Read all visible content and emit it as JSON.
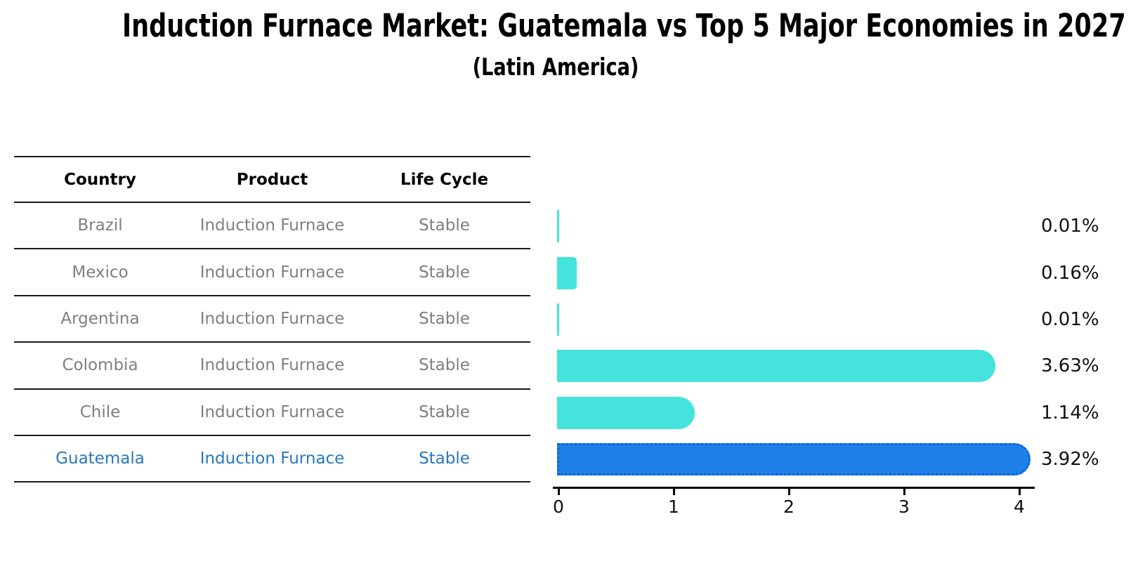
{
  "title": "Induction Furnace Market: Guatemala vs Top 5 Major Economies in 2027",
  "subtitle": "(Latin America)",
  "table": {
    "headers": [
      "Country",
      "Product",
      "Life Cycle"
    ],
    "rows": [
      {
        "country": "Brazil",
        "product": "Induction Furnace",
        "life_cycle": "Stable",
        "highlight": false
      },
      {
        "country": "Mexico",
        "product": "Induction Furnace",
        "life_cycle": "Stable",
        "highlight": false
      },
      {
        "country": "Argentina",
        "product": "Induction Furnace",
        "life_cycle": "Stable",
        "highlight": false
      },
      {
        "country": "Colombia",
        "product": "Induction Furnace",
        "life_cycle": "Stable",
        "highlight": false
      },
      {
        "country": "Chile",
        "product": "Induction Furnace",
        "life_cycle": "Stable",
        "highlight": false
      },
      {
        "country": "Guatemala",
        "product": "Induction Furnace",
        "life_cycle": "Stable",
        "highlight": true
      }
    ]
  },
  "chart_data": {
    "type": "bar",
    "orientation": "horizontal",
    "title": "Induction Furnace Market: Guatemala vs Top 5 Major Economies in 2027",
    "subtitle": "(Latin America)",
    "categories": [
      "Brazil",
      "Mexico",
      "Argentina",
      "Colombia",
      "Chile",
      "Guatemala"
    ],
    "values": [
      0.01,
      0.16,
      0.01,
      3.63,
      1.14,
      3.92
    ],
    "value_labels": [
      "0.01%",
      "0.16%",
      "0.01%",
      "3.63%",
      "1.14%",
      "3.92%"
    ],
    "unit": "%",
    "x_ticks": [
      "0",
      "1",
      "2",
      "3",
      "4"
    ],
    "xlim": [
      0,
      4.2
    ],
    "grid": false,
    "legend": "none",
    "highlight_category": "Guatemala",
    "bar_color": "#44E3DC",
    "highlight_bar_color": "#1E80E8",
    "highlight_border_color": "#0E62D8",
    "highlight_text_color": "#2878BF",
    "row_text_color": "#7f7f7f",
    "axis_color": "#000000"
  }
}
